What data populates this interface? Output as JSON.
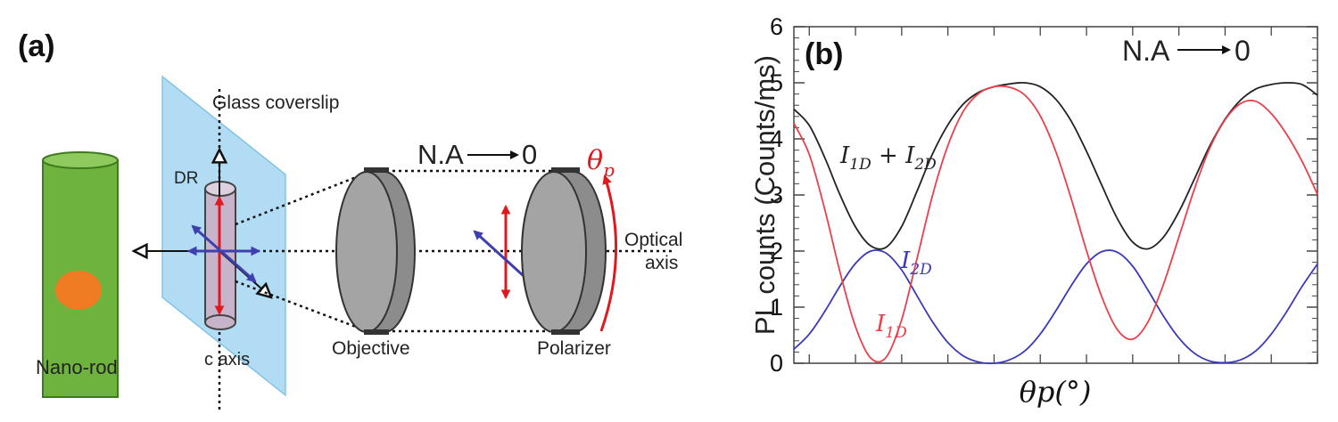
{
  "panel_a": {
    "tag": "(a)",
    "labels": {
      "glass_coverslip": "Glass coverslip",
      "dr": "DR",
      "c_axis": "c axis",
      "nano_rod": "Nano-rod",
      "na_text": "N.A",
      "na_zero": "0",
      "theta_base": "θ",
      "theta_sub": "p",
      "optical": "Optical",
      "axis": "axis",
      "objective": "Objective",
      "polarizer": "Polarizer"
    },
    "colors": {
      "coverslip": "#a9d9f2",
      "rod": "#6fb33f",
      "dot": "#ef7b22",
      "lens": "#a4a4a4",
      "red_arrow": "#e0191e",
      "blue_arrow": "#3f3fb0"
    }
  },
  "panel_b": {
    "tag": "(b)",
    "na_text": "N.A",
    "na_zero": "0",
    "curve_labels": {
      "sum": {
        "base1": "I",
        "sub1": "1D",
        "plus": " + ",
        "base2": "I",
        "sub2": "2D"
      },
      "i2d": {
        "base": "I",
        "sub": "2D"
      },
      "i1d": {
        "base": "I",
        "sub": "1D"
      }
    }
  },
  "chart_data": {
    "type": "line",
    "xlabel": "θp(°)",
    "ylabel": "PL counts (Counts/ms)",
    "ylim": [
      0,
      6
    ],
    "xlim": [
      -100,
      240
    ],
    "yticks": [
      "0",
      "1",
      "2",
      "3",
      "4",
      "5",
      "6"
    ],
    "grid": false,
    "series": [
      {
        "name": "I1D + I2D",
        "color": "#222222",
        "x": [
          -100,
          -90,
          -80,
          -70,
          -60,
          -50,
          -40,
          -30,
          -20,
          -10,
          0,
          10,
          20,
          30,
          40,
          50,
          60,
          70,
          80,
          90,
          100,
          110,
          120,
          130,
          140,
          150,
          160,
          170,
          180,
          190,
          200,
          210,
          220,
          230,
          240
        ],
        "y": [
          4.53,
          4.24,
          3.67,
          3.0,
          2.43,
          2.09,
          2.07,
          2.44,
          3.07,
          3.73,
          4.25,
          4.62,
          4.83,
          4.93,
          4.98,
          5.0,
          4.93,
          4.71,
          4.32,
          3.78,
          3.17,
          2.58,
          2.16,
          2.04,
          2.25,
          2.7,
          3.28,
          3.87,
          4.35,
          4.69,
          4.89,
          4.97,
          5.0,
          4.97,
          4.78
        ]
      },
      {
        "name": "I2D",
        "color": "#3a3ab8",
        "x": [
          -100,
          -90,
          -80,
          -70,
          -60,
          -50,
          -40,
          -30,
          -20,
          -10,
          0,
          10,
          20,
          30,
          40,
          50,
          60,
          70,
          80,
          90,
          100,
          110,
          120,
          130,
          140,
          150,
          160,
          170,
          180,
          190,
          200,
          210,
          220,
          230,
          240
        ],
        "y": [
          0.25,
          0.52,
          0.92,
          1.38,
          1.78,
          2.0,
          1.96,
          1.66,
          1.2,
          0.74,
          0.37,
          0.13,
          0.02,
          0.0,
          0.06,
          0.22,
          0.52,
          0.93,
          1.38,
          1.77,
          1.99,
          1.98,
          1.73,
          1.3,
          0.84,
          0.45,
          0.18,
          0.04,
          0.01,
          0.06,
          0.22,
          0.52,
          0.92,
          1.37,
          1.77
        ]
      },
      {
        "name": "I1D",
        "color": "#e8414c",
        "x": [
          -100,
          -90,
          -80,
          -70,
          -60,
          -50,
          -40,
          -30,
          -20,
          -10,
          0,
          10,
          20,
          30,
          40,
          50,
          60,
          70,
          80,
          90,
          100,
          110,
          120,
          130,
          140,
          150,
          160,
          170,
          180,
          190,
          200,
          210,
          220,
          230,
          240
        ],
        "y": [
          4.28,
          3.72,
          2.75,
          1.62,
          0.65,
          0.09,
          0.11,
          0.78,
          1.87,
          2.99,
          3.88,
          4.49,
          4.81,
          4.93,
          4.92,
          4.78,
          4.41,
          3.78,
          2.94,
          2.01,
          1.18,
          0.6,
          0.43,
          0.74,
          1.41,
          2.25,
          3.1,
          3.83,
          4.34,
          4.63,
          4.67,
          4.45,
          4.08,
          3.6,
          3.01
        ]
      }
    ]
  }
}
